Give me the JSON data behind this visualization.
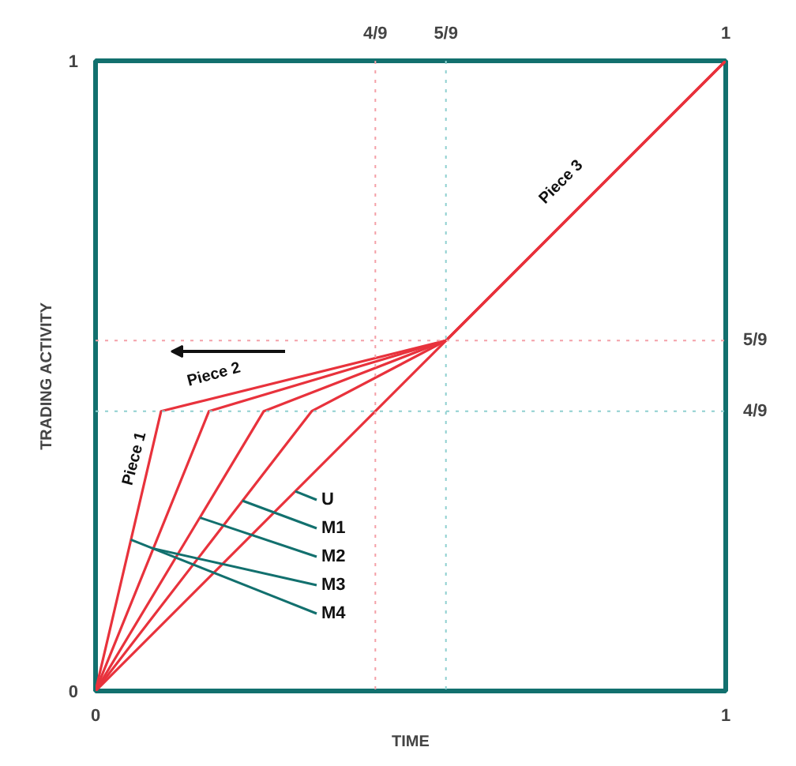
{
  "chart_data": {
    "type": "line",
    "xlabel": "TIME",
    "ylabel": "TRADING ACTIVITY",
    "xlim": [
      0,
      1
    ],
    "ylim": [
      0,
      1
    ],
    "xticks": [
      0,
      1
    ],
    "yticks": [
      0,
      1
    ],
    "marker": "none",
    "line_style": "solid",
    "series": [
      {
        "color": "#e8323c",
        "x": [
          0,
          0.556,
          1
        ],
        "values": [
          0,
          0.556,
          1
        ]
      },
      {
        "color": "#e8323c",
        "x": [
          0,
          0.343,
          0.556,
          1
        ],
        "values": [
          0,
          0.444,
          0.556,
          1
        ]
      },
      {
        "color": "#e8323c",
        "x": [
          0,
          0.267,
          0.556,
          1
        ],
        "values": [
          0,
          0.444,
          0.556,
          1
        ]
      },
      {
        "color": "#e8323c",
        "x": [
          0,
          0.18,
          0.556,
          1
        ],
        "values": [
          0,
          0.444,
          0.556,
          1
        ]
      },
      {
        "color": "#e8323c",
        "x": [
          0,
          0.104,
          0.556,
          1
        ],
        "values": [
          0,
          0.444,
          0.556,
          1
        ]
      }
    ],
    "ref_lines": [
      {
        "axis": "x",
        "value": 0.444,
        "color": "#f4a0a8",
        "line_style": "dotted"
      },
      {
        "axis": "x",
        "value": 0.556,
        "color": "#8fd0d0",
        "line_style": "dotted"
      },
      {
        "axis": "y",
        "value": 0.556,
        "color": "#f4a0a8",
        "line_style": "dotted"
      },
      {
        "axis": "y",
        "value": 0.444,
        "color": "#8fd0d0",
        "line_style": "dotted"
      }
    ],
    "annotations": [
      "Piece 1",
      "Piece 2",
      "Piece 3",
      {
        "text": "U",
        "x": 0.317,
        "y": 0.317
      },
      {
        "text": "M1",
        "x": 0.233,
        "y": 0.302
      },
      {
        "text": "M2",
        "x": 0.166,
        "y": 0.275
      },
      {
        "text": "M3",
        "x": 0.092,
        "y": 0.226
      },
      {
        "text": "M4",
        "x": 0.056,
        "y": 0.24
      },
      "4/9",
      "5/9",
      "1",
      "5/9",
      "4/9"
    ]
  }
}
